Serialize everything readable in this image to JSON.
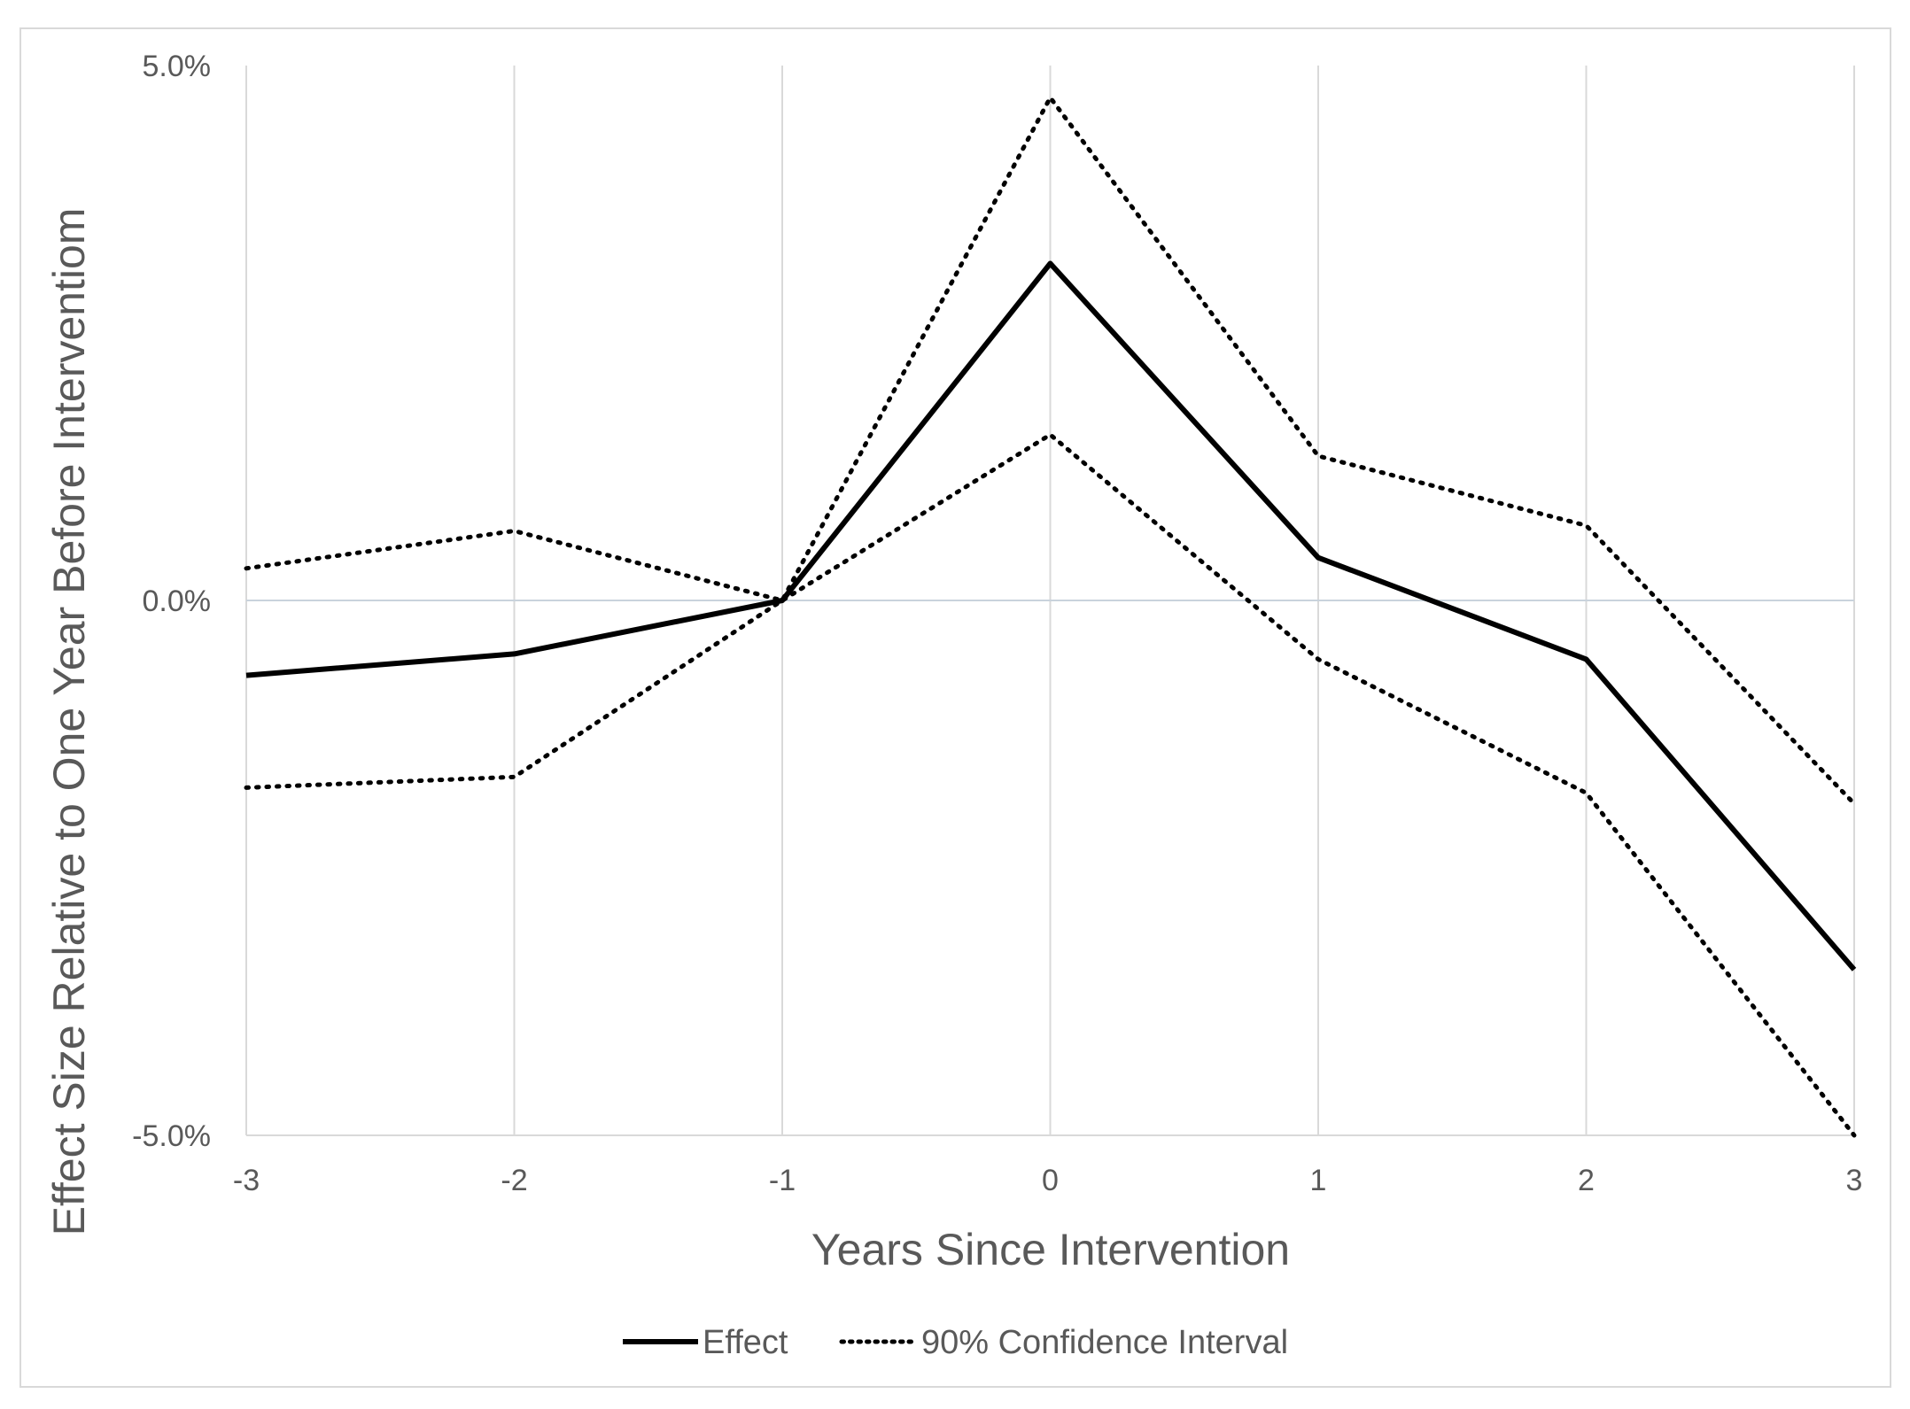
{
  "chart_data": {
    "type": "line",
    "x": [
      -3,
      -2,
      -1,
      0,
      1,
      2,
      3
    ],
    "x_tick_labels": [
      "-3",
      "-2",
      "-1",
      "0",
      "1",
      "2",
      "3"
    ],
    "y_tick_values": [
      5.0,
      0.0,
      -5.0
    ],
    "y_tick_labels": [
      "5.0%",
      "0.0%",
      "-5.0%"
    ],
    "xlim": [
      -3,
      3
    ],
    "ylim": [
      -5.0,
      5.0
    ],
    "xlabel": "Years Since Intervention",
    "ylabel": "Effect Size Relative to One Year Before Interventiom",
    "grid": "vertical",
    "legend_position": "bottom",
    "series": [
      {
        "name": "Effect",
        "style": "solid",
        "color": "#000000",
        "values": [
          -0.7,
          -0.5,
          0.0,
          3.15,
          0.4,
          -0.55,
          -3.45
        ]
      },
      {
        "name": "90% Confidence Interval",
        "style": "dotted",
        "color": "#000000",
        "values": [
          0.3,
          0.65,
          0.0,
          4.7,
          1.35,
          0.7,
          -1.9
        ]
      },
      {
        "name": "90% Confidence Interval",
        "style": "dotted",
        "color": "#000000",
        "values": [
          -1.75,
          -1.65,
          0.0,
          1.55,
          -0.55,
          -1.8,
          -5.0
        ],
        "show_in_legend": false
      }
    ],
    "colors": {
      "gridline": "#d9d9d9",
      "zero_line": "#c9d3dc",
      "tick_text": "#595959"
    }
  }
}
